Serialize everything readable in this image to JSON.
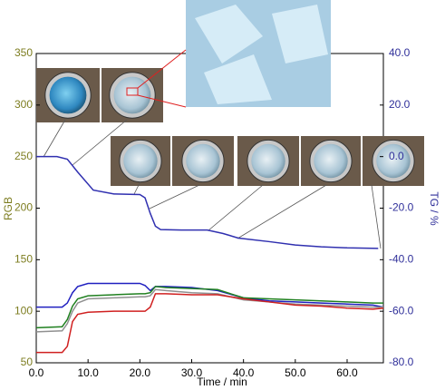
{
  "chart_data": {
    "type": "line",
    "x_label": "Time / min",
    "y_label": "RGB",
    "y2_label": "TG / %",
    "xlim": [
      0,
      67
    ],
    "xticks": [
      {
        "value": 0,
        "label": "0.0"
      },
      {
        "value": 10,
        "label": "10.0"
      },
      {
        "value": 20,
        "label": "20.0"
      },
      {
        "value": 30,
        "label": "30.0"
      },
      {
        "value": 40,
        "label": "40.0"
      },
      {
        "value": 50,
        "label": "50.0"
      },
      {
        "value": 60,
        "label": "60.0"
      }
    ],
    "ylim": [
      50,
      350
    ],
    "yticks": [
      50,
      100,
      150,
      200,
      250,
      300,
      350
    ],
    "y2lim": [
      -80,
      40
    ],
    "y2ticks": [
      {
        "value": -80,
        "label": "-80.0"
      },
      {
        "value": -60,
        "label": "-60.0"
      },
      {
        "value": -40,
        "label": "-40.0"
      },
      {
        "value": -20,
        "label": "-20.0"
      },
      {
        "value": 0,
        "label": "0.0"
      },
      {
        "value": 20,
        "label": "20.0"
      },
      {
        "value": 40,
        "label": "40.0"
      }
    ],
    "series": [
      {
        "color": "#3030b0",
        "axis": "y2",
        "x": [
          0,
          4,
          6,
          8,
          11,
          15,
          20,
          21,
          22,
          23,
          24,
          28,
          33,
          36,
          39,
          45,
          50,
          55,
          60,
          66
        ],
        "values": [
          0,
          0,
          -1,
          -6,
          -13,
          -14.5,
          -14.7,
          -16,
          -22,
          -27,
          -28.3,
          -28.5,
          -28.5,
          -29.8,
          -31.6,
          -33,
          -34.3,
          -35,
          -35.4,
          -35.6
        ]
      },
      {
        "color": "#2020c0",
        "x": [
          0,
          5,
          6,
          7,
          8,
          10,
          15,
          20,
          21,
          22,
          23,
          25,
          30,
          35,
          40,
          45,
          50,
          55,
          60,
          65,
          67
        ],
        "values": [
          104,
          104,
          108,
          118,
          124,
          127,
          127,
          127,
          125,
          120,
          124,
          124,
          123,
          120,
          113,
          110,
          109,
          108,
          107,
          106,
          104
        ]
      },
      {
        "color": "#208020",
        "x": [
          0,
          5,
          6,
          7,
          8,
          10,
          15,
          20,
          21,
          22,
          23,
          25,
          30,
          35,
          40,
          45,
          50,
          55,
          60,
          65,
          67
        ],
        "values": [
          84,
          85,
          92,
          105,
          112,
          115,
          116,
          117,
          117,
          118,
          124,
          123,
          122,
          121,
          113,
          112,
          111,
          110,
          109,
          108,
          108
        ]
      },
      {
        "color": "#909090",
        "x": [
          0,
          5,
          6,
          7,
          8,
          10,
          15,
          20,
          21,
          22,
          23,
          25,
          30,
          35,
          40,
          45,
          50,
          55,
          60,
          65,
          67
        ],
        "values": [
          80,
          81,
          88,
          100,
          108,
          112,
          113,
          114,
          114,
          115,
          121,
          120,
          118,
          117,
          111,
          109,
          107,
          106,
          105,
          104,
          104
        ]
      },
      {
        "color": "#d02020",
        "x": [
          0,
          5,
          6,
          7,
          8,
          10,
          15,
          20,
          21,
          22,
          23,
          25,
          30,
          35,
          40,
          45,
          50,
          55,
          60,
          65,
          67
        ],
        "values": [
          60,
          60,
          66,
          90,
          97,
          99,
          100,
          100,
          100,
          104,
          117,
          117,
          116,
          116,
          112,
          109,
          106,
          105,
          103,
          102,
          103
        ]
      }
    ]
  }
}
